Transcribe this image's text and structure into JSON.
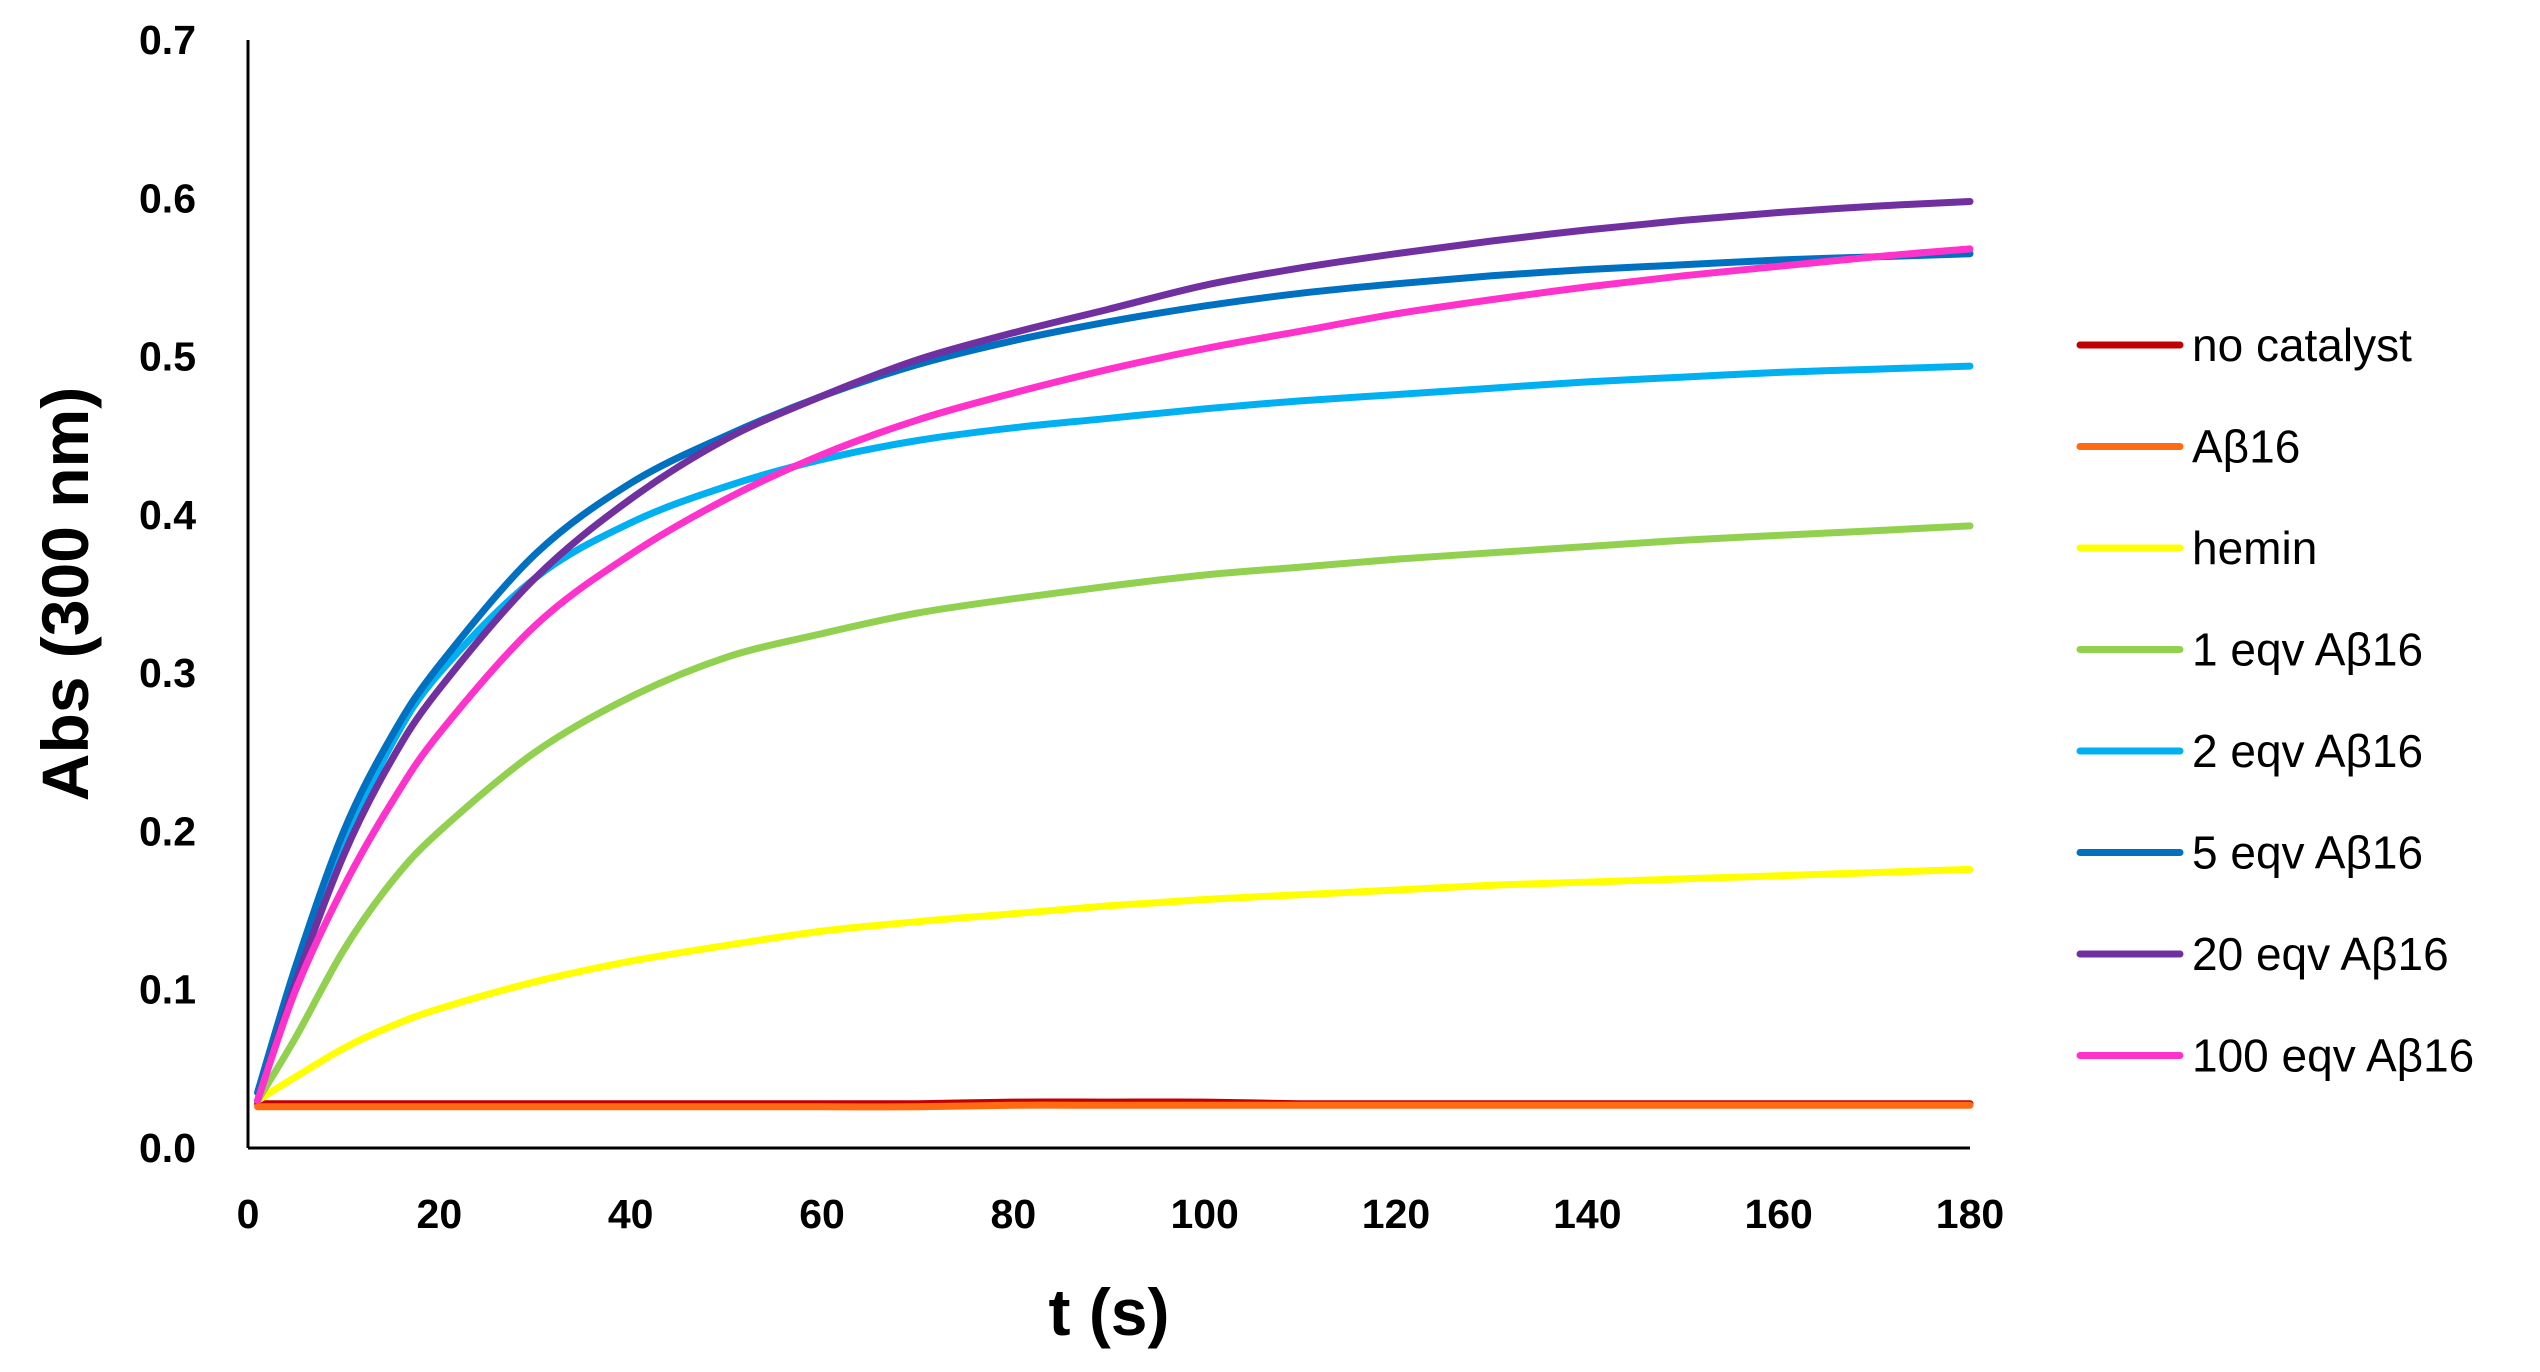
{
  "chart_data": {
    "type": "line",
    "title": "",
    "xlabel": "t (s)",
    "ylabel": "Abs (300 nm)",
    "xlim": [
      0,
      180
    ],
    "ylim": [
      0.0,
      0.7
    ],
    "x_ticks": [
      "0",
      "20",
      "40",
      "60",
      "80",
      "100",
      "120",
      "140",
      "160",
      "180"
    ],
    "y_ticks": [
      "0.0",
      "0.1",
      "0.2",
      "0.3",
      "0.4",
      "0.5",
      "0.6",
      "0.7"
    ],
    "grid": false,
    "legend_position": "right",
    "x": [
      1,
      5,
      10,
      15,
      20,
      30,
      40,
      50,
      60,
      70,
      80,
      90,
      100,
      110,
      120,
      130,
      140,
      150,
      160,
      170,
      180
    ],
    "series": [
      {
        "name": "no catalyst",
        "color": "#C00000",
        "values": [
          0.028,
          0.028,
          0.028,
          0.028,
          0.028,
          0.028,
          0.028,
          0.028,
          0.028,
          0.028,
          0.029,
          0.029,
          0.029,
          0.028,
          0.028,
          0.028,
          0.028,
          0.028,
          0.028,
          0.028,
          0.028
        ]
      },
      {
        "name": "Aβ16",
        "color": "#FF6A13",
        "values": [
          0.026,
          0.026,
          0.026,
          0.026,
          0.026,
          0.026,
          0.026,
          0.026,
          0.026,
          0.026,
          0.027,
          0.027,
          0.027,
          0.027,
          0.027,
          0.027,
          0.027,
          0.027,
          0.027,
          0.027,
          0.027
        ]
      },
      {
        "name": "hemin",
        "color": "#FFFF00",
        "values": [
          0.03,
          0.045,
          0.063,
          0.077,
          0.088,
          0.105,
          0.118,
          0.128,
          0.137,
          0.143,
          0.148,
          0.153,
          0.157,
          0.16,
          0.163,
          0.166,
          0.168,
          0.17,
          0.172,
          0.174,
          0.176
        ]
      },
      {
        "name": "1 eqv Aβ16",
        "color": "#92D050",
        "values": [
          0.03,
          0.07,
          0.125,
          0.168,
          0.2,
          0.25,
          0.285,
          0.31,
          0.325,
          0.338,
          0.347,
          0.355,
          0.362,
          0.367,
          0.372,
          0.376,
          0.38,
          0.384,
          0.387,
          0.39,
          0.393
        ]
      },
      {
        "name": "2 eqv Aβ16",
        "color": "#00B0F0",
        "values": [
          0.035,
          0.11,
          0.19,
          0.255,
          0.3,
          0.36,
          0.395,
          0.418,
          0.435,
          0.447,
          0.455,
          0.461,
          0.467,
          0.472,
          0.476,
          0.48,
          0.484,
          0.487,
          0.49,
          0.492,
          0.494
        ]
      },
      {
        "name": "5 eqv Aβ16",
        "color": "#0070C0",
        "values": [
          0.035,
          0.115,
          0.2,
          0.26,
          0.305,
          0.375,
          0.42,
          0.45,
          0.475,
          0.495,
          0.51,
          0.522,
          0.532,
          0.54,
          0.546,
          0.551,
          0.555,
          0.558,
          0.561,
          0.563,
          0.565
        ]
      },
      {
        "name": "20 eqv Aβ16",
        "color": "#7030A0",
        "values": [
          0.03,
          0.105,
          0.185,
          0.245,
          0.29,
          0.36,
          0.41,
          0.448,
          0.475,
          0.498,
          0.515,
          0.53,
          0.545,
          0.556,
          0.565,
          0.573,
          0.58,
          0.586,
          0.591,
          0.595,
          0.598
        ]
      },
      {
        "name": "100 eqv Aβ16",
        "color": "#FF33CC",
        "values": [
          0.03,
          0.1,
          0.165,
          0.218,
          0.262,
          0.33,
          0.375,
          0.41,
          0.438,
          0.46,
          0.477,
          0.492,
          0.505,
          0.516,
          0.527,
          0.536,
          0.544,
          0.551,
          0.557,
          0.563,
          0.568
        ]
      }
    ]
  }
}
